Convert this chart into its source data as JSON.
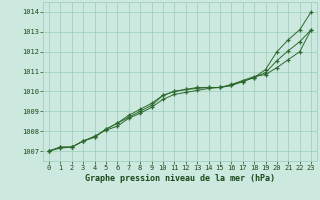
{
  "x": [
    0,
    1,
    2,
    3,
    4,
    5,
    6,
    7,
    8,
    9,
    10,
    11,
    12,
    13,
    14,
    15,
    16,
    17,
    18,
    19,
    20,
    21,
    22,
    23
  ],
  "line1": [
    1007.0,
    1007.2,
    1007.2,
    1007.5,
    1007.7,
    1008.1,
    1008.4,
    1008.7,
    1009.0,
    1009.3,
    1009.8,
    1010.0,
    1010.1,
    1010.2,
    1010.2,
    1010.2,
    1010.3,
    1010.5,
    1010.7,
    1011.1,
    1012.0,
    1012.6,
    1013.1,
    1014.0
  ],
  "line2": [
    1007.0,
    1007.2,
    1007.2,
    1007.5,
    1007.7,
    1008.1,
    1008.4,
    1008.8,
    1009.1,
    1009.4,
    1009.8,
    1010.0,
    1010.1,
    1010.15,
    1010.2,
    1010.2,
    1010.35,
    1010.55,
    1010.75,
    1010.85,
    1011.2,
    1011.6,
    1012.0,
    1013.1
  ],
  "line3": [
    1007.0,
    1007.15,
    1007.2,
    1007.5,
    1007.75,
    1008.05,
    1008.25,
    1008.65,
    1008.9,
    1009.2,
    1009.6,
    1009.85,
    1009.95,
    1010.05,
    1010.15,
    1010.2,
    1010.3,
    1010.5,
    1010.7,
    1010.95,
    1011.55,
    1012.05,
    1012.5,
    1013.1
  ],
  "ylim": [
    1006.5,
    1014.5
  ],
  "yticks": [
    1007,
    1008,
    1009,
    1010,
    1011,
    1012,
    1013,
    1014
  ],
  "xticks": [
    0,
    1,
    2,
    3,
    4,
    5,
    6,
    7,
    8,
    9,
    10,
    11,
    12,
    13,
    14,
    15,
    16,
    17,
    18,
    19,
    20,
    21,
    22,
    23
  ],
  "line_color": "#2d6a2d",
  "bg_color": "#cce8df",
  "grid_color": "#99ccbb",
  "xlabel": "Graphe pression niveau de la mer (hPa)",
  "xlabel_color": "#1a4a1a",
  "marker": "+",
  "markersize": 3,
  "lw": 0.7
}
